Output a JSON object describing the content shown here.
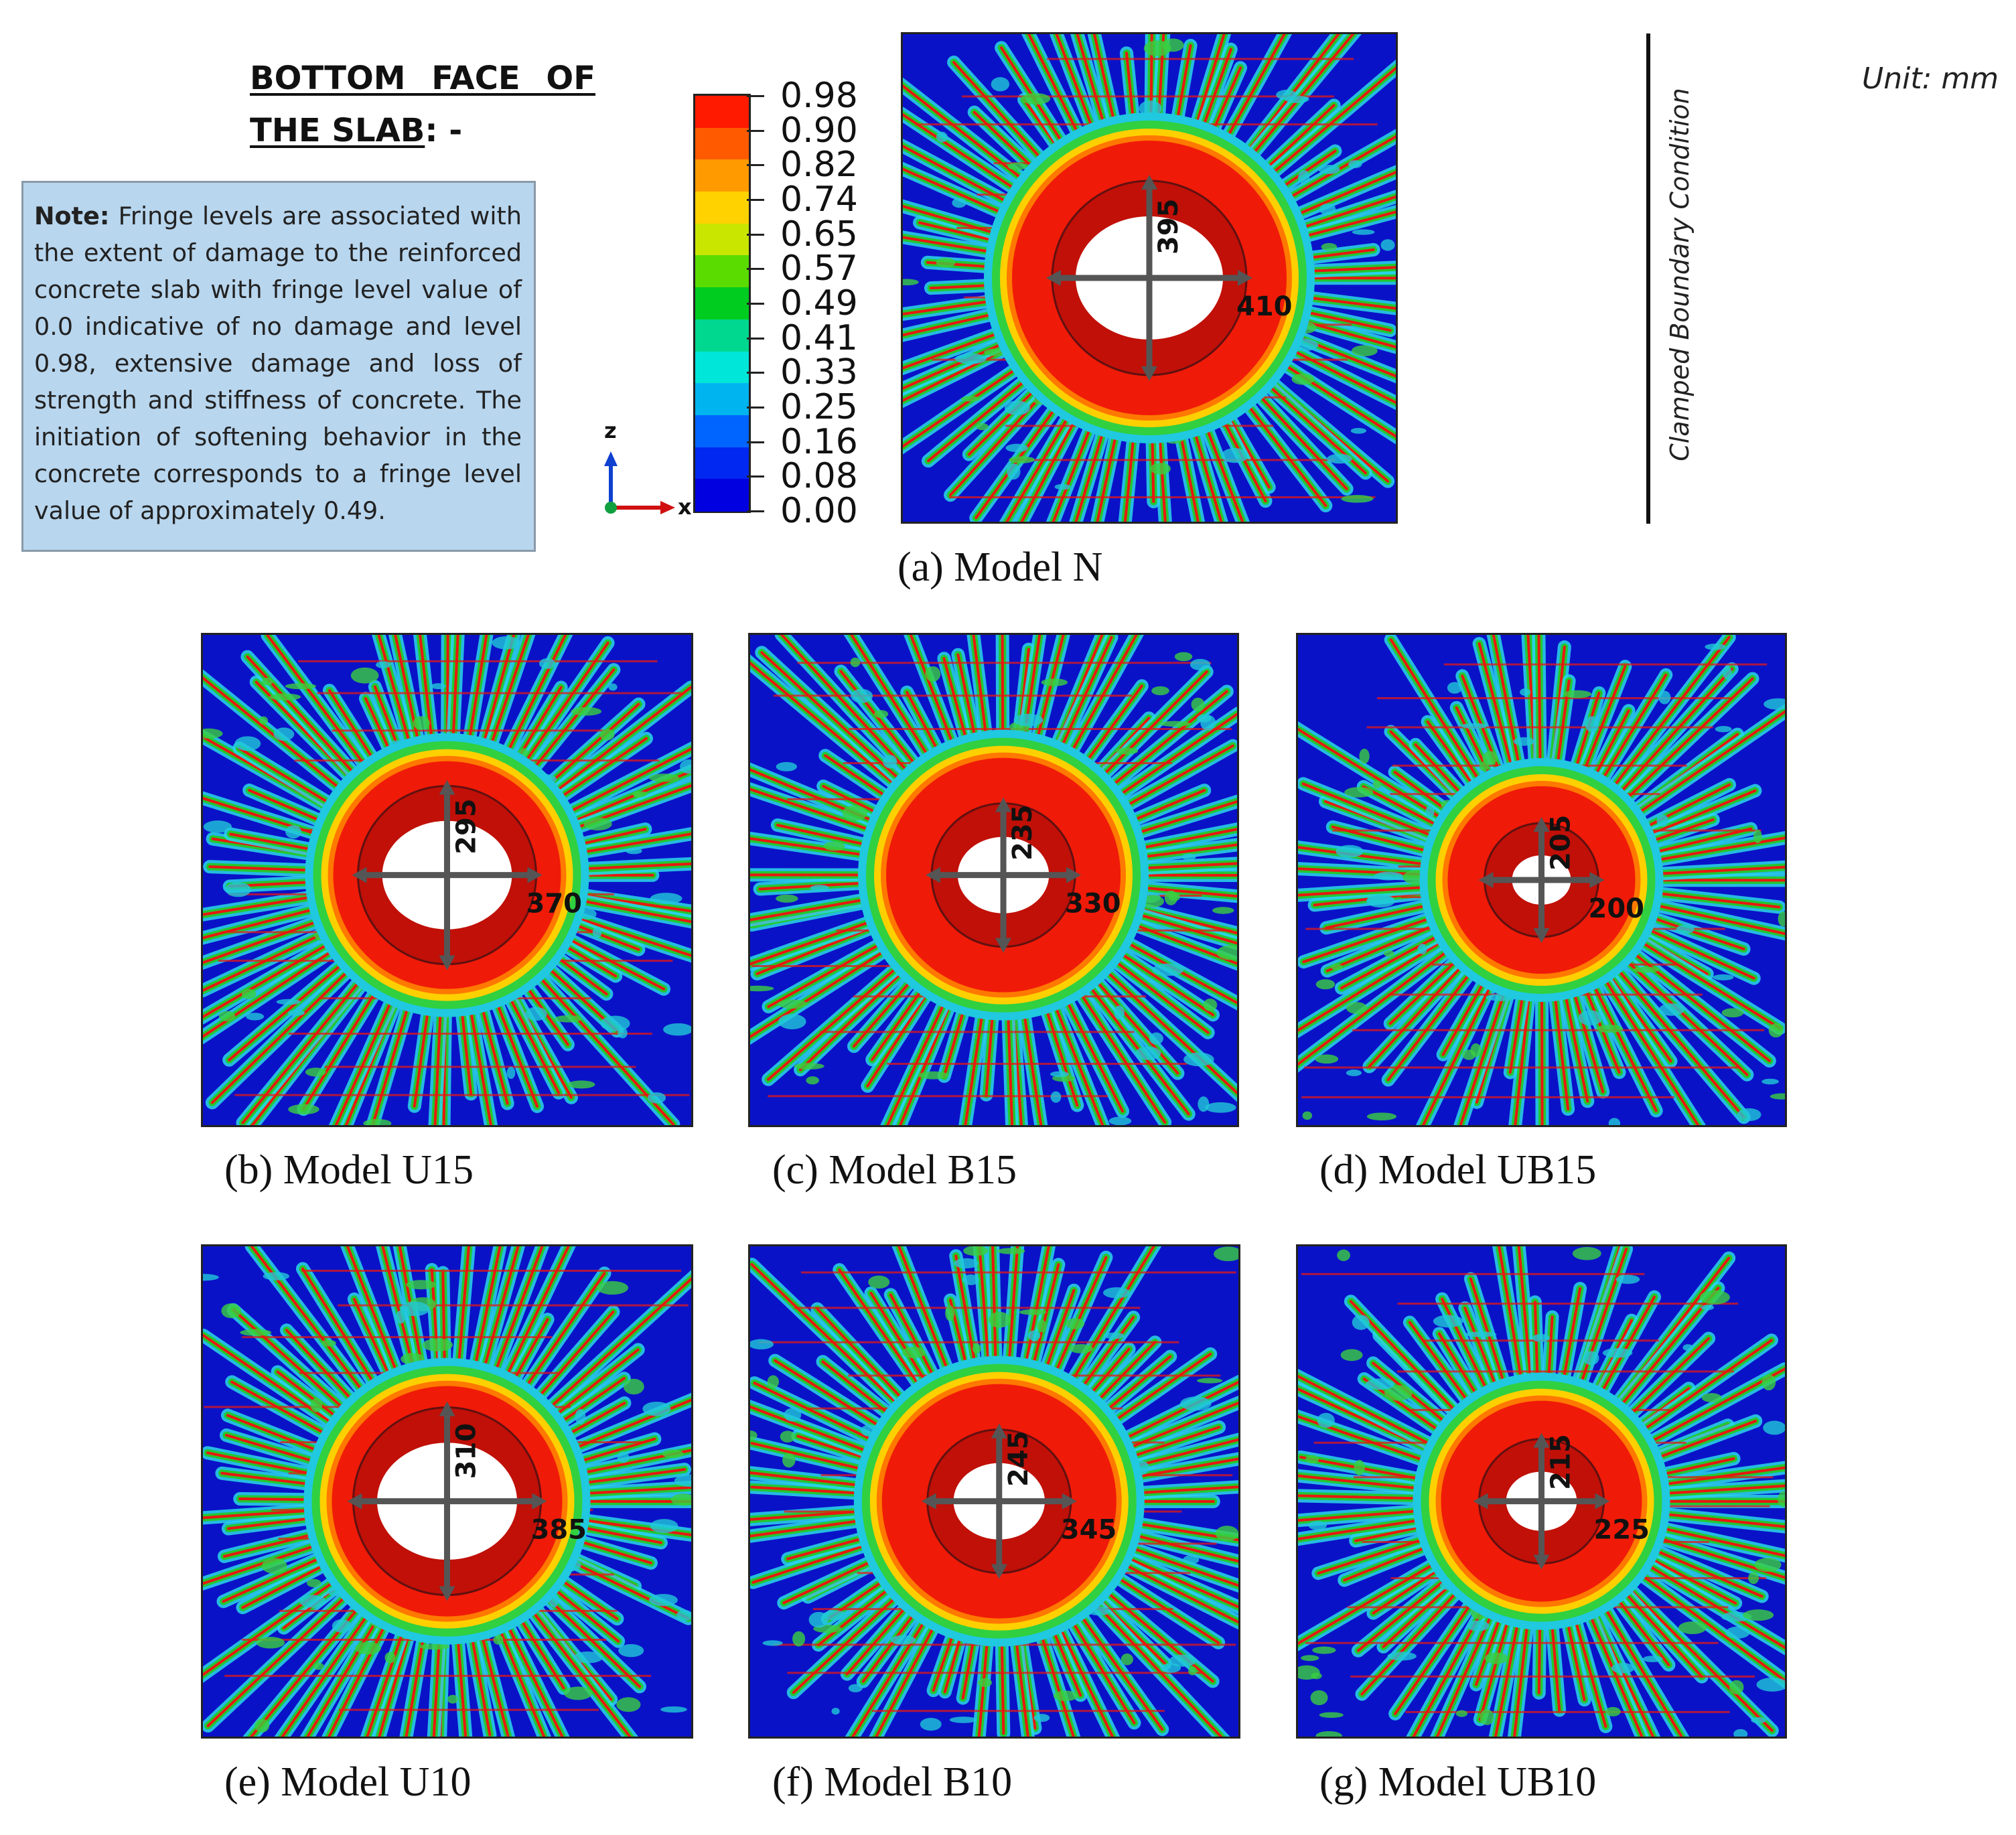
{
  "heading": {
    "line1": "BOTTOM FACE OF",
    "line2_underlined": "THE SLAB",
    "line2_suffix": ": -"
  },
  "note": {
    "label": "Note:",
    "text": "Fringe levels are associated with the extent of damage to the reinforced concrete slab with fringe level value of 0.0 indicative of no damage and level 0.98, extensive damage and loss of strength and stiffness of concrete. The initiation of softening behavior in the concrete corresponds to a fringe level value of approximately 0.49."
  },
  "legend": {
    "levels": [
      "0.98",
      "0.90",
      "0.82",
      "0.74",
      "0.65",
      "0.57",
      "0.49",
      "0.41",
      "0.33",
      "0.25",
      "0.16",
      "0.08",
      "0.00"
    ],
    "colors": [
      "#ff1a00",
      "#ff5a00",
      "#ff9a00",
      "#ffd200",
      "#c8e600",
      "#5adc00",
      "#00cc20",
      "#00d890",
      "#00e6d8",
      "#00b4f0",
      "#0064ff",
      "#0028f0",
      "#0000e0"
    ]
  },
  "axes": {
    "z_label": "z",
    "x_label": "x"
  },
  "unit": "Unit: mm",
  "boundary_condition": "Clamped Boundary Condition",
  "panels": [
    {
      "caption": "(a) Model N",
      "dim_vertical": "395",
      "dim_horizontal": "410"
    },
    {
      "caption": "(b) Model U15",
      "dim_vertical": "295",
      "dim_horizontal": "370"
    },
    {
      "caption": "(c) Model B15",
      "dim_vertical": "235",
      "dim_horizontal": "330"
    },
    {
      "caption": "(d) Model UB15",
      "dim_vertical": "205",
      "dim_horizontal": "200"
    },
    {
      "caption": "(e) Model U10",
      "dim_vertical": "310",
      "dim_horizontal": "385"
    },
    {
      "caption": "(f) Model B10",
      "dim_vertical": "245",
      "dim_horizontal": "345"
    },
    {
      "caption": "(g) Model UB10",
      "dim_vertical": "215",
      "dim_horizontal": "225"
    }
  ]
}
